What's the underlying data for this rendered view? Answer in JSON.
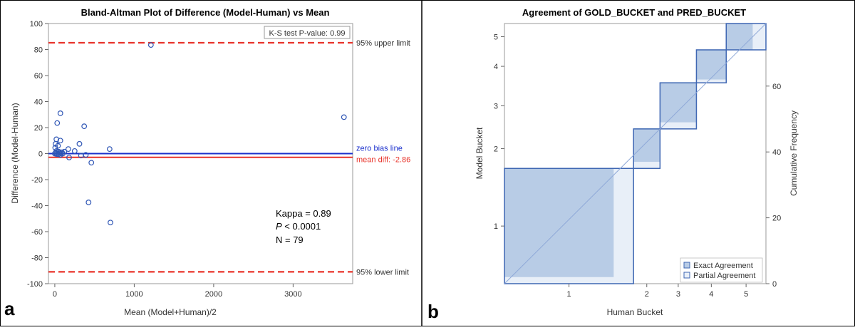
{
  "chart_data": [
    {
      "type": "scatter",
      "panel_label": "a",
      "title": "Bland-Altman Plot of Difference (Model-Human) vs Mean",
      "xlabel": "Mean (Model+Human)/2",
      "ylabel": "Difference (Model-Human)",
      "xlim": [
        -80,
        3750
      ],
      "ylim": [
        -100,
        100
      ],
      "xticks": [
        0,
        1000,
        2000,
        3000
      ],
      "yticks": [
        100,
        80,
        60,
        40,
        20,
        0,
        -20,
        -40,
        -60,
        -80,
        -100
      ],
      "grid": false,
      "inset_label": "K-S test P-value: 0.99",
      "stats": {
        "kappa": "Kappa = 0.89",
        "p_prefix": "P",
        "p_rest": " < 0.0001",
        "n": "N = 79"
      },
      "reference_lines": [
        {
          "label": "95% upper limit",
          "y": 85.2,
          "color": "#e8332a",
          "style": "dashed"
        },
        {
          "label": "zero bias line",
          "y": 0,
          "color": "#1a2fcc",
          "style": "solid"
        },
        {
          "label": "mean diff: -2.86",
          "y": -2.86,
          "color": "#e8332a",
          "style": "solid"
        },
        {
          "label": "95% lower limit",
          "y": -90.9,
          "color": "#e8332a",
          "style": "dashed"
        }
      ],
      "marker_color": "#2f56b5",
      "points": [
        [
          1210,
          83.5
        ],
        [
          3640,
          28
        ],
        [
          70,
          31
        ],
        [
          30,
          23.5
        ],
        [
          370,
          21
        ],
        [
          20,
          11
        ],
        [
          70,
          10
        ],
        [
          10,
          7.5
        ],
        [
          310,
          7.5
        ],
        [
          40,
          6
        ],
        [
          5,
          4.5
        ],
        [
          690,
          3.5
        ],
        [
          170,
          3.5
        ],
        [
          250,
          2
        ],
        [
          20,
          2
        ],
        [
          50,
          1.5
        ],
        [
          90,
          1
        ],
        [
          120,
          1.5
        ],
        [
          10,
          0.5
        ],
        [
          35,
          0.2
        ],
        [
          60,
          0.5
        ],
        [
          80,
          0
        ],
        [
          100,
          0
        ],
        [
          0,
          0
        ],
        [
          25,
          -0.5
        ],
        [
          45,
          -0.5
        ],
        [
          70,
          -1
        ],
        [
          330,
          -1.5
        ],
        [
          180,
          -3
        ],
        [
          390,
          -1
        ],
        [
          460,
          -7
        ],
        [
          425,
          -37.5
        ],
        [
          700,
          -53
        ]
      ]
    },
    {
      "type": "agreement",
      "panel_label": "b",
      "title": "Agreement of GOLD_BUCKET and PRED_BUCKET",
      "xlabel": "Human Bucket",
      "ylabel": "Model Bucket",
      "y2label": "Cumulative Frequency",
      "categories": [
        "1",
        "2",
        "3",
        "4",
        "5"
      ],
      "n_total": 79,
      "row_totals": [
        35,
        12,
        14,
        10,
        8
      ],
      "col_totals": [
        39,
        8,
        11,
        9,
        12
      ],
      "exact_agreement": [
        33,
        10,
        12,
        9,
        8
      ],
      "partial_agreement": [
        5,
        12,
        14,
        10,
        8
      ],
      "y2ticks": [
        0,
        20,
        40,
        60
      ],
      "legend": [
        {
          "label": "Exact Agreement",
          "color": "#b8cce6"
        },
        {
          "label": "Partial Agreement",
          "color": "#e8eff8"
        }
      ],
      "legend_position": "bottom-right",
      "border_color": "#3f67b3"
    }
  ]
}
